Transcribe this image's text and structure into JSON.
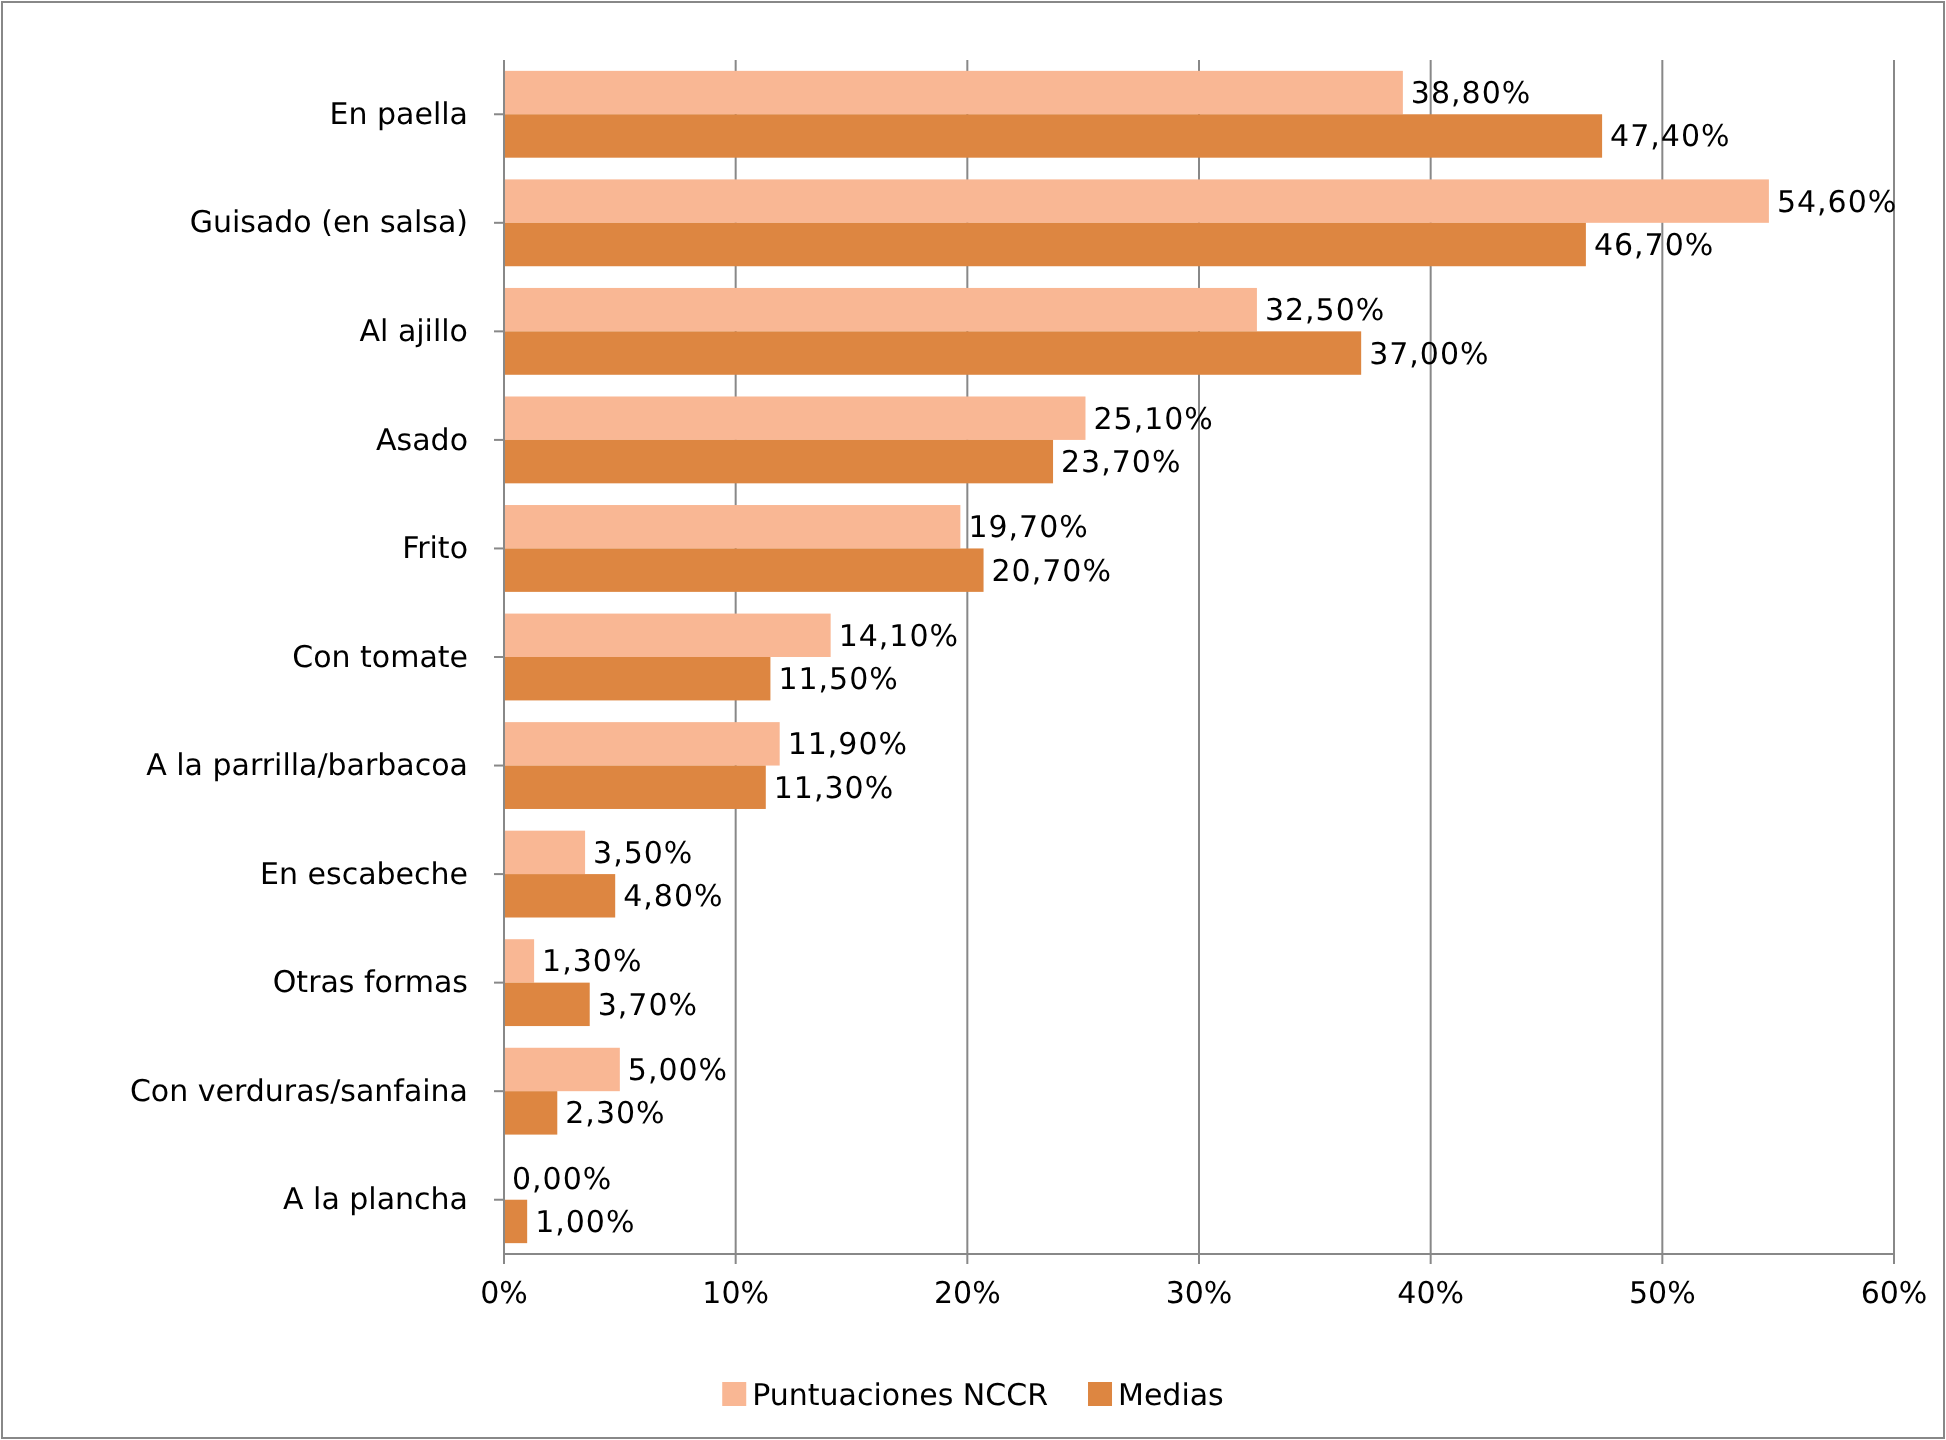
{
  "chart_data": {
    "type": "bar",
    "orientation": "horizontal",
    "categories": [
      "En paella",
      "Guisado (en salsa)",
      "Al ajillo",
      "Asado",
      "Frito",
      "Con tomate",
      "A la parrilla/barbacoa",
      "En escabeche",
      "Otras formas",
      "Con verduras/sanfaina",
      "A la plancha"
    ],
    "series": [
      {
        "name": "Puntuaciones  NCCR",
        "color": "#f9b794",
        "values": [
          38.8,
          54.6,
          32.5,
          25.1,
          19.7,
          14.1,
          11.9,
          3.5,
          1.3,
          5.0,
          0.0
        ],
        "value_labels": [
          "38,80%",
          "54,60%",
          "32,50%",
          "25,10%",
          "19,70%",
          "14,10%",
          "11,90%",
          "3,50%",
          "1,30%",
          "5,00%",
          "0,00%"
        ]
      },
      {
        "name": "Medias",
        "color": "#dd8641",
        "values": [
          47.4,
          46.7,
          37.0,
          23.7,
          20.7,
          11.5,
          11.3,
          4.8,
          3.7,
          2.3,
          1.0
        ],
        "value_labels": [
          "47,40%",
          "46,70%",
          "37,00%",
          "23,70%",
          "20,70%",
          "11,50%",
          "11,30%",
          "4,80%",
          "3,70%",
          "2,30%",
          "1,00%"
        ]
      }
    ],
    "xlim": [
      0,
      60
    ],
    "xticks": [
      {
        "value": 0,
        "label": "0%"
      },
      {
        "value": 10,
        "label": "10%"
      },
      {
        "value": 20,
        "label": "20%"
      },
      {
        "value": 30,
        "label": "30%"
      },
      {
        "value": 40,
        "label": "40%"
      },
      {
        "value": 50,
        "label": "50%"
      },
      {
        "value": 60,
        "label": "60%"
      }
    ],
    "grid": "x",
    "legend": "bottom"
  }
}
